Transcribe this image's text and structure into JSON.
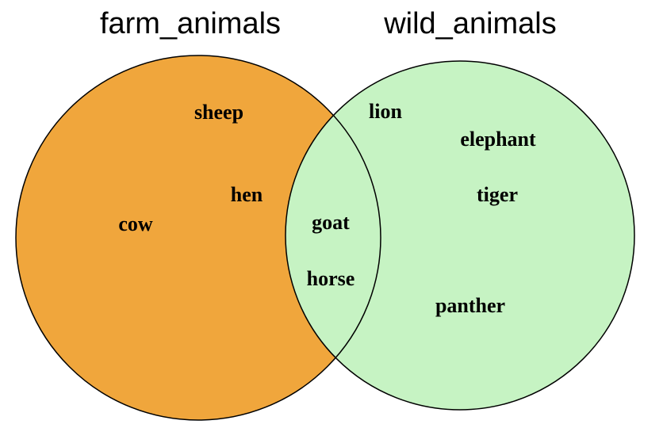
{
  "diagram": {
    "type": "venn",
    "sets": [
      {
        "name": "farm_animals",
        "fill": "#f0a63c",
        "only_items": [
          "sheep",
          "hen",
          "cow"
        ]
      },
      {
        "name": "wild_animals",
        "fill": "#c6f3c3",
        "only_items": [
          "lion",
          "elephant",
          "tiger",
          "panther"
        ]
      }
    ],
    "intersection": {
      "fill": "#c6f3c3",
      "items": [
        "goat",
        "horse"
      ]
    },
    "outline_color": "#000000"
  }
}
